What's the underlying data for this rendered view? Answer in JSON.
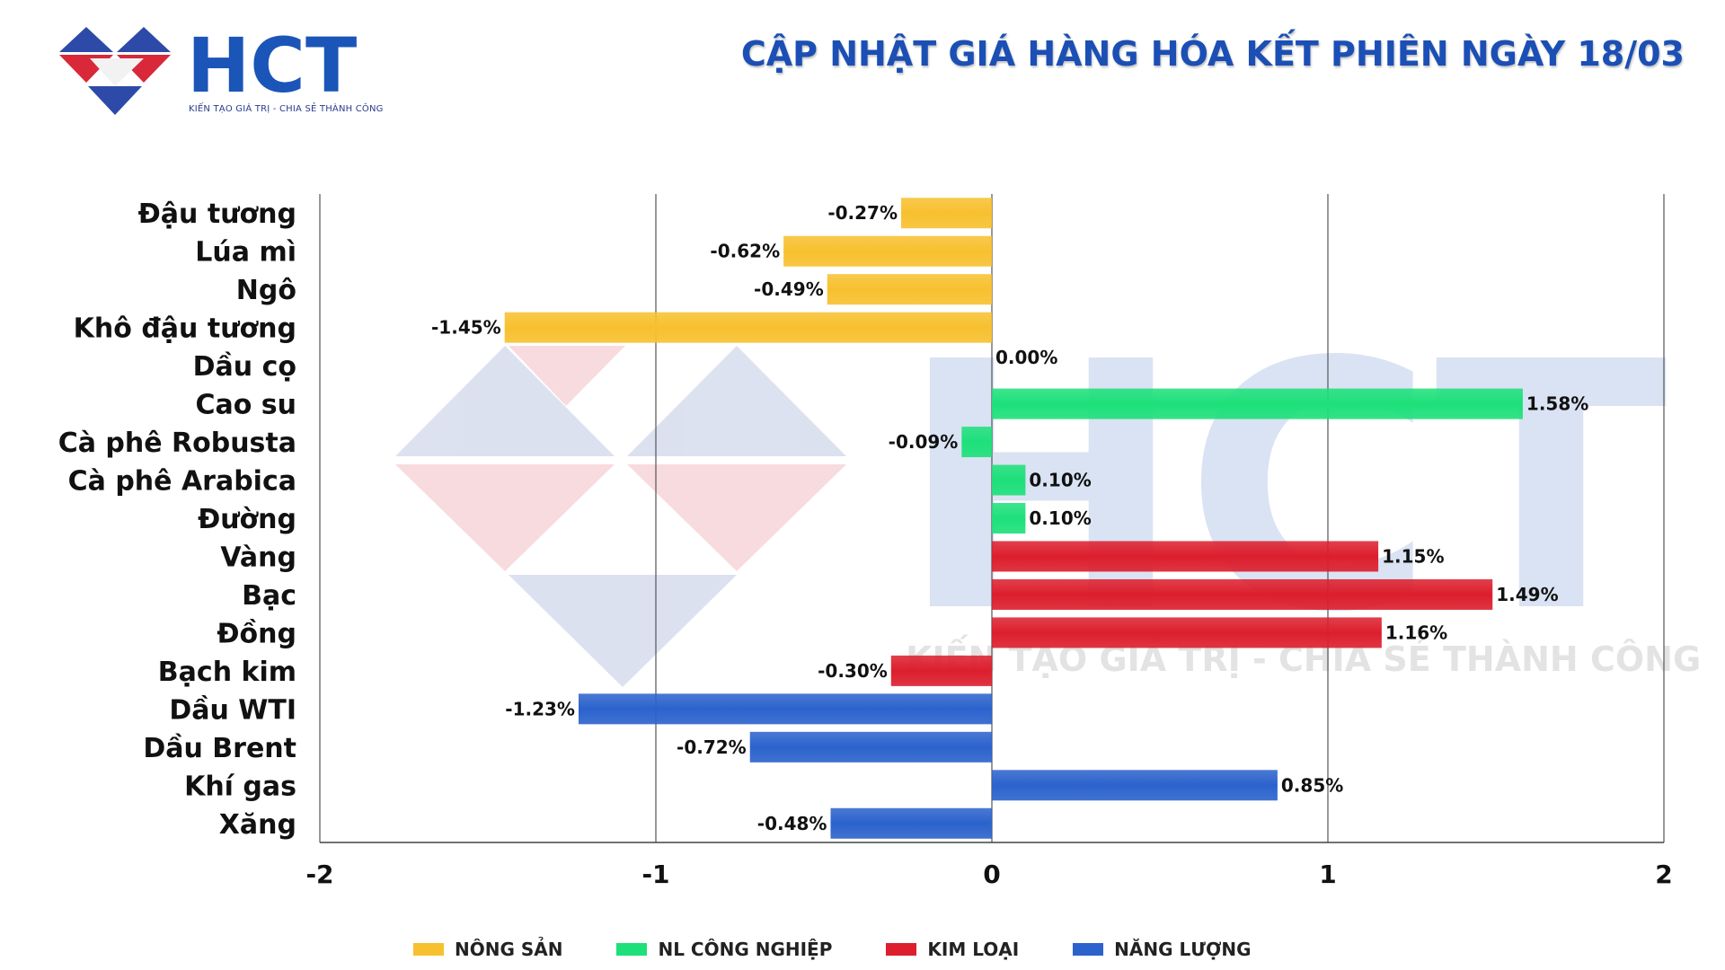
{
  "header": {
    "logo_text": "HCT",
    "logo_tagline": "KIẾN TẠO GIÁ TRỊ - CHIA SẺ THÀNH CÔNG",
    "title": "CẬP NHẬT GIÁ HÀNG HÓA KẾT PHIÊN NGÀY 18/03"
  },
  "watermark": {
    "text": "HCT",
    "tagline": "KIẾN TẠO GIÁ TRỊ - CHIA SẺ THÀNH CÔNG"
  },
  "colors": {
    "nong_san": "#f7c02e",
    "nl_cong_nghiep": "#1de07a",
    "kim_loai": "#dc1e2d",
    "nang_luong": "#2b62cc",
    "title": "#1b4fb5"
  },
  "chart_data": {
    "type": "bar",
    "orientation": "horizontal",
    "xlim": [
      -2,
      2
    ],
    "xticks": [
      "-2",
      "-1",
      "0",
      "1",
      "2"
    ],
    "grid": true,
    "legend_position": "bottom",
    "groups": [
      {
        "key": "nong_san",
        "name": "NÔNG SẢN"
      },
      {
        "key": "nl_cong_nghiep",
        "name": "NL CÔNG NGHIỆP"
      },
      {
        "key": "kim_loai",
        "name": "KIM LOẠI"
      },
      {
        "key": "nang_luong",
        "name": "NĂNG LƯỢNG"
      }
    ],
    "items": [
      {
        "label": "Đậu tương",
        "value": -0.27,
        "value_label": "-0.27%",
        "group": "nong_san"
      },
      {
        "label": "Lúa mì",
        "value": -0.62,
        "value_label": "-0.62%",
        "group": "nong_san"
      },
      {
        "label": "Ngô",
        "value": -0.49,
        "value_label": "-0.49%",
        "group": "nong_san"
      },
      {
        "label": "Khô đậu tương",
        "value": -1.45,
        "value_label": "-1.45%",
        "group": "nong_san"
      },
      {
        "label": "Dầu cọ",
        "value": 0.0,
        "value_label": "0.00%",
        "group": "nl_cong_nghiep"
      },
      {
        "label": "Cao su",
        "value": 1.58,
        "value_label": "1.58%",
        "group": "nl_cong_nghiep"
      },
      {
        "label": "Cà phê Robusta",
        "value": -0.09,
        "value_label": "-0.09%",
        "group": "nl_cong_nghiep"
      },
      {
        "label": "Cà phê Arabica",
        "value": 0.1,
        "value_label": "0.10%",
        "group": "nl_cong_nghiep"
      },
      {
        "label": "Đường",
        "value": 0.1,
        "value_label": "0.10%",
        "group": "nl_cong_nghiep"
      },
      {
        "label": "Vàng",
        "value": 1.15,
        "value_label": "1.15%",
        "group": "kim_loai"
      },
      {
        "label": "Bạc",
        "value": 1.49,
        "value_label": "1.49%",
        "group": "kim_loai"
      },
      {
        "label": "Đồng",
        "value": 1.16,
        "value_label": "1.16%",
        "group": "kim_loai"
      },
      {
        "label": "Bạch kim",
        "value": -0.3,
        "value_label": "-0.30%",
        "group": "kim_loai"
      },
      {
        "label": "Dầu WTI",
        "value": -1.23,
        "value_label": "-1.23%",
        "group": "nang_luong"
      },
      {
        "label": "Dầu Brent",
        "value": -0.72,
        "value_label": "-0.72%",
        "group": "nang_luong"
      },
      {
        "label": "Khí gas",
        "value": 0.85,
        "value_label": "0.85%",
        "group": "nang_luong"
      },
      {
        "label": "Xăng",
        "value": -0.48,
        "value_label": "-0.48%",
        "group": "nang_luong"
      }
    ]
  }
}
